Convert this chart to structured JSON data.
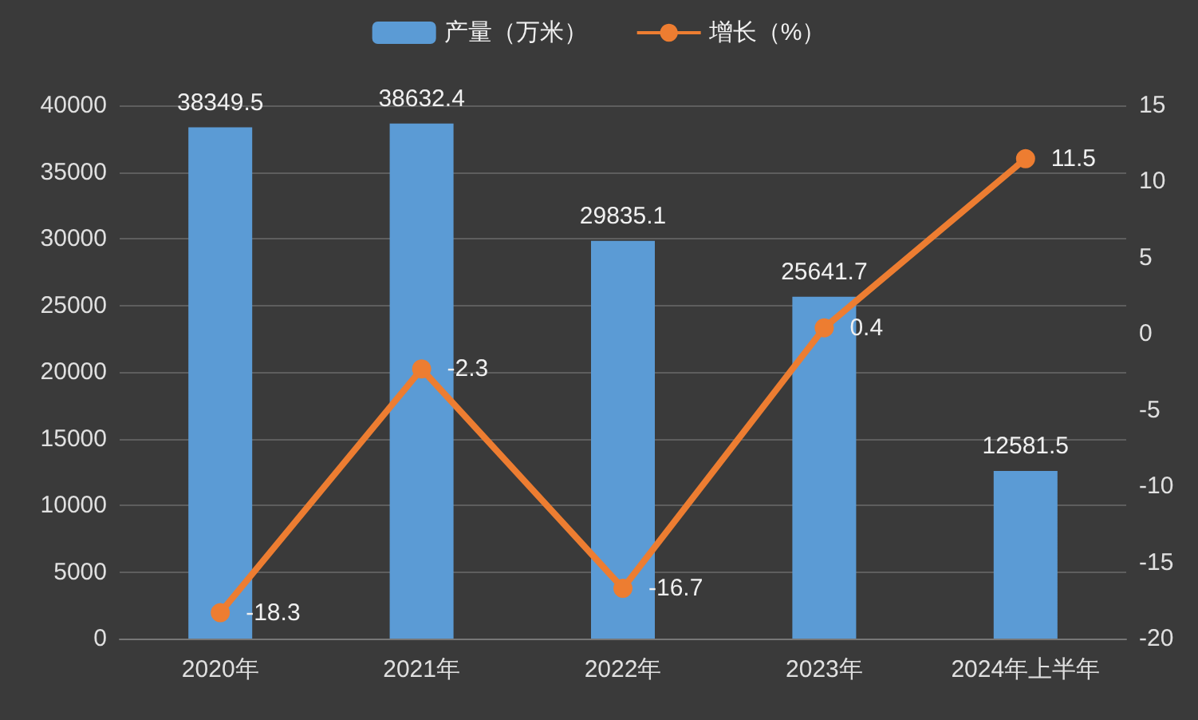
{
  "chart_data": {
    "type": "bar",
    "categories": [
      "2020年",
      "2021年",
      "2022年",
      "2023年",
      "2024年上半年"
    ],
    "series": [
      {
        "name": "产量（万米）",
        "color": "#5b9bd5",
        "values": [
          38349.5,
          38632.4,
          29835.1,
          25641.7,
          12581.5
        ]
      },
      {
        "name": "增长（%）",
        "type": "line",
        "axis": "y2",
        "color": "#ed7d31",
        "values": [
          -18.3,
          -2.3,
          -16.7,
          0.4,
          11.5
        ]
      }
    ],
    "ylim": [
      0,
      40000
    ],
    "yticks": [
      0,
      5000,
      10000,
      15000,
      20000,
      25000,
      30000,
      35000,
      40000
    ],
    "y2lim": [
      -20,
      15
    ],
    "y2ticks": [
      -20,
      -15,
      -10,
      -5,
      0,
      5,
      10,
      15
    ],
    "grid": "y",
    "legend": "top",
    "marker": "circle",
    "line_style": "solid",
    "data_labels": true
  }
}
